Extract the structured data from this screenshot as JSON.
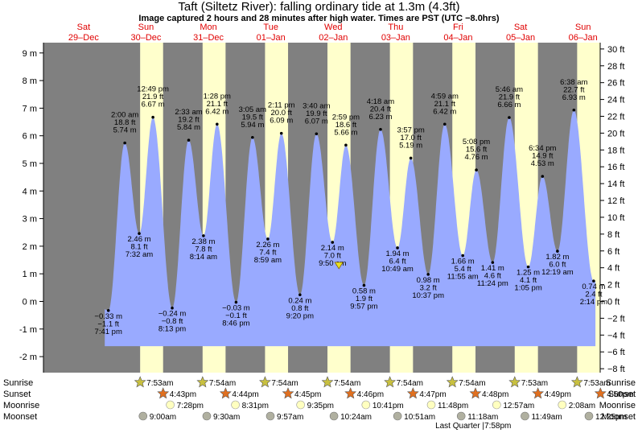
{
  "title": "Taft (Siltetz River): falling  ordinary tide at 1.3m (4.3ft)",
  "subtitle": "Image captured 2 hours and 28 minutes after high water. Times are PST (UTC −8.0hrs)",
  "colors": {
    "night": "#808080",
    "day": "#ffffcc",
    "water": "#99aaff",
    "day_label": "#e00000",
    "sun_star": "#c8c040",
    "sunset_star": "#e07020",
    "moonrise": "#ffffc0",
    "moonset": "#b0b0a0"
  },
  "days": [
    {
      "dow": "Sat",
      "date": "29–Dec"
    },
    {
      "dow": "Sun",
      "date": "30–Dec"
    },
    {
      "dow": "Mon",
      "date": "31–Dec"
    },
    {
      "dow": "Tue",
      "date": "01–Jan"
    },
    {
      "dow": "Wed",
      "date": "02–Jan"
    },
    {
      "dow": "Thu",
      "date": "03–Jan"
    },
    {
      "dow": "Fri",
      "date": "04–Jan"
    },
    {
      "dow": "Sat",
      "date": "05–Jan"
    },
    {
      "dow": "Sun",
      "date": "06–Jan"
    }
  ],
  "chart_data": {
    "type": "area",
    "title": "Taft (Siltetz River): falling  ordinary tide at 1.3m (4.3ft)",
    "ylabel_left": "m",
    "ylabel_right": "ft",
    "ylim_m": [
      -2.35,
      9.3
    ],
    "y_ticks_m": [
      "-2 m",
      "-1 m",
      "0 m",
      "1 m",
      "2 m",
      "3 m",
      "4 m",
      "5 m",
      "6 m",
      "7 m",
      "8 m",
      "9 m"
    ],
    "y_ticks_ft": [
      "−8 ft",
      "−6 ft",
      "−4 ft",
      "−2 ft",
      "0 ft",
      "2 ft",
      "4 ft",
      "6 ft",
      "8 ft",
      "10 ft",
      "12 ft",
      "14 ft",
      "16 ft",
      "18 ft",
      "20 ft",
      "22 ft",
      "24 ft",
      "26 ft",
      "28 ft",
      "30 ft"
    ],
    "current_level_m": 1.3,
    "tides": [
      {
        "time": "7:41 pm",
        "m": -0.33,
        "ft": "−1.1 ft",
        "mt": "−0.33 m",
        "type": "low"
      },
      {
        "time": "2:00 am",
        "m": 5.74,
        "ft": "18.8 ft",
        "mt": "5.74 m",
        "type": "high"
      },
      {
        "time": "7:32 am",
        "m": 2.46,
        "ft": "8.1 ft",
        "mt": "2.46 m",
        "type": "low"
      },
      {
        "time": "12:49 pm",
        "m": 6.67,
        "ft": "21.9 ft",
        "mt": "6.67 m",
        "type": "high"
      },
      {
        "time": "8:13 pm",
        "m": -0.24,
        "ft": "−0.8 ft",
        "mt": "−0.24 m",
        "type": "low"
      },
      {
        "time": "2:33 am",
        "m": 5.84,
        "ft": "19.2 ft",
        "mt": "5.84 m",
        "type": "high"
      },
      {
        "time": "8:14 am",
        "m": 2.38,
        "ft": "7.8 ft",
        "mt": "2.38 m",
        "type": "low"
      },
      {
        "time": "1:28 pm",
        "m": 6.42,
        "ft": "21.1 ft",
        "mt": "6.42 m",
        "type": "high"
      },
      {
        "time": "8:46 pm",
        "m": -0.03,
        "ft": "−0.1 ft",
        "mt": "−0.03 m",
        "type": "low"
      },
      {
        "time": "3:05 am",
        "m": 5.94,
        "ft": "19.5 ft",
        "mt": "5.94 m",
        "type": "high"
      },
      {
        "time": "8:59 am",
        "m": 2.26,
        "ft": "7.4 ft",
        "mt": "2.26 m",
        "type": "low"
      },
      {
        "time": "2:11 pm",
        "m": 6.09,
        "ft": "20.0 ft",
        "mt": "6.09 m",
        "type": "high"
      },
      {
        "time": "9:20 pm",
        "m": 0.24,
        "ft": "0.8 ft",
        "mt": "0.24 m",
        "type": "low"
      },
      {
        "time": "3:40 am",
        "m": 6.07,
        "ft": "19.9 ft",
        "mt": "6.07 m",
        "type": "high"
      },
      {
        "time": "9:50 am",
        "m": 2.14,
        "ft": "7.0 ft",
        "mt": "2.14 m",
        "type": "low"
      },
      {
        "time": "2:59 pm",
        "m": 5.66,
        "ft": "18.6 ft",
        "mt": "5.66 m",
        "type": "high"
      },
      {
        "time": "9:57 pm",
        "m": 0.58,
        "ft": "1.9 ft",
        "mt": "0.58 m",
        "type": "low"
      },
      {
        "time": "4:18 am",
        "m": 6.23,
        "ft": "20.4 ft",
        "mt": "6.23 m",
        "type": "high"
      },
      {
        "time": "10:49 am",
        "m": 1.94,
        "ft": "6.4 ft",
        "mt": "1.94 m",
        "type": "low"
      },
      {
        "time": "3:57 pm",
        "m": 5.19,
        "ft": "17.0 ft",
        "mt": "5.19 m",
        "type": "high"
      },
      {
        "time": "10:37 pm",
        "m": 0.98,
        "ft": "3.2 ft",
        "mt": "0.98 m",
        "type": "low"
      },
      {
        "time": "4:59 am",
        "m": 6.42,
        "ft": "21.1 ft",
        "mt": "6.42 m",
        "type": "high"
      },
      {
        "time": "11:55 am",
        "m": 1.66,
        "ft": "5.4 ft",
        "mt": "1.66 m",
        "type": "low"
      },
      {
        "time": "5:08 pm",
        "m": 4.76,
        "ft": "15.6 ft",
        "mt": "4.76 m",
        "type": "high"
      },
      {
        "time": "11:24 pm",
        "m": 1.41,
        "ft": "4.6 ft",
        "mt": "1.41 m",
        "type": "low"
      },
      {
        "time": "5:46 am",
        "m": 6.66,
        "ft": "21.9 ft",
        "mt": "6.66 m",
        "type": "high"
      },
      {
        "time": "1:05 pm",
        "m": 1.25,
        "ft": "4.1 ft",
        "mt": "1.25 m",
        "type": "low"
      },
      {
        "time": "6:34 pm",
        "m": 4.53,
        "ft": "14.9 ft",
        "mt": "4.53 m",
        "type": "high"
      },
      {
        "time": "12:19 am",
        "m": 1.82,
        "ft": "6.0 ft",
        "mt": "1.82 m",
        "type": "low"
      },
      {
        "time": "6:38 am",
        "m": 6.93,
        "ft": "22.7 ft",
        "mt": "6.93 m",
        "type": "high"
      },
      {
        "time": "2:14 pm",
        "m": 0.74,
        "ft": "2.4 ft",
        "mt": "0.74 m",
        "type": "low"
      }
    ]
  },
  "astro": {
    "labels": {
      "sunrise": "Sunrise",
      "sunset": "Sunset",
      "moonrise": "Moonrise",
      "moonset": "Moonset"
    },
    "sunrise": [
      "7:53am",
      "7:54am",
      "7:54am",
      "7:54am",
      "7:54am",
      "7:54am",
      "7:53am",
      "7:53am"
    ],
    "sunset": [
      "4:43pm",
      "4:44pm",
      "4:45pm",
      "4:46pm",
      "4:47pm",
      "4:48pm",
      "4:49pm",
      "4:50pm"
    ],
    "moonrise": [
      "7:28pm",
      "8:31pm",
      "9:35pm",
      "10:41pm",
      "11:48pm",
      "12:57am",
      "2:08am"
    ],
    "moonset": [
      "9:00am",
      "9:30am",
      "9:57am",
      "10:24am",
      "10:51am",
      "11:18am",
      "11:49am",
      "12:25pm"
    ],
    "moon_phase": "Last Quarter |7:58pm"
  }
}
